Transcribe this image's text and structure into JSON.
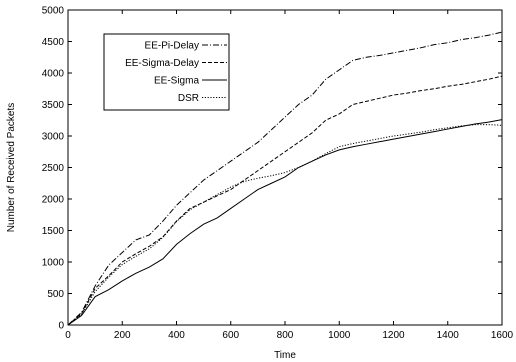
{
  "chart_data": {
    "type": "line",
    "title": "",
    "xlabel": "Time",
    "ylabel": "Number of Received Packets",
    "xlim": [
      0,
      1600
    ],
    "ylim": [
      0,
      5000
    ],
    "x_ticks": [
      "0",
      "200",
      "400",
      "600",
      "800",
      "1000",
      "1200",
      "1400",
      "1600"
    ],
    "y_ticks": [
      "0",
      "500",
      "1000",
      "1500",
      "2000",
      "2500",
      "3000",
      "3500",
      "4000",
      "4500",
      "5000"
    ],
    "grid": false,
    "legend_position": "top-left",
    "series": [
      {
        "name": "EE-Pi-Delay",
        "line_style": "dash-dot",
        "x": [
          0,
          50,
          100,
          150,
          200,
          250,
          300,
          350,
          400,
          450,
          500,
          550,
          600,
          650,
          700,
          750,
          800,
          850,
          900,
          950,
          1000,
          1050,
          1100,
          1150,
          1200,
          1250,
          1300,
          1350,
          1400,
          1450,
          1500,
          1550,
          1600
        ],
        "y": [
          0,
          200,
          620,
          950,
          1150,
          1350,
          1430,
          1650,
          1900,
          2100,
          2300,
          2450,
          2600,
          2750,
          2900,
          3100,
          3300,
          3500,
          3650,
          3900,
          4050,
          4200,
          4250,
          4280,
          4320,
          4360,
          4400,
          4450,
          4480,
          4530,
          4560,
          4600,
          4650
        ]
      },
      {
        "name": "EE-Sigma-Delay",
        "line_style": "dashed",
        "x": [
          0,
          50,
          100,
          150,
          200,
          250,
          300,
          350,
          400,
          450,
          500,
          550,
          600,
          650,
          700,
          750,
          800,
          850,
          900,
          950,
          1000,
          1050,
          1100,
          1150,
          1200,
          1250,
          1300,
          1350,
          1400,
          1450,
          1500,
          1550,
          1600
        ],
        "y": [
          0,
          180,
          580,
          780,
          1000,
          1130,
          1250,
          1400,
          1650,
          1850,
          1950,
          2050,
          2150,
          2300,
          2450,
          2600,
          2750,
          2900,
          3050,
          3250,
          3350,
          3500,
          3550,
          3600,
          3650,
          3680,
          3720,
          3750,
          3790,
          3820,
          3860,
          3900,
          3950
        ]
      },
      {
        "name": "EE-Sigma",
        "line_style": "solid",
        "x": [
          0,
          50,
          100,
          150,
          200,
          250,
          300,
          350,
          400,
          450,
          500,
          550,
          600,
          650,
          700,
          750,
          800,
          850,
          900,
          950,
          1000,
          1050,
          1100,
          1150,
          1200,
          1250,
          1300,
          1350,
          1400,
          1450,
          1500,
          1550,
          1600
        ],
        "y": [
          0,
          150,
          450,
          560,
          700,
          820,
          920,
          1050,
          1280,
          1450,
          1600,
          1700,
          1850,
          2000,
          2150,
          2250,
          2350,
          2500,
          2600,
          2700,
          2780,
          2830,
          2870,
          2910,
          2950,
          2990,
          3030,
          3070,
          3110,
          3150,
          3190,
          3220,
          3260
        ]
      },
      {
        "name": "DSR",
        "line_style": "dotted",
        "x": [
          0,
          50,
          100,
          150,
          200,
          250,
          300,
          350,
          400,
          450,
          500,
          550,
          600,
          650,
          700,
          750,
          800,
          850,
          900,
          950,
          1000,
          1050,
          1100,
          1150,
          1200,
          1250,
          1300,
          1350,
          1400,
          1450,
          1500,
          1550,
          1600
        ],
        "y": [
          0,
          170,
          530,
          760,
          960,
          1090,
          1210,
          1390,
          1640,
          1830,
          1950,
          2070,
          2190,
          2280,
          2330,
          2370,
          2420,
          2500,
          2600,
          2720,
          2830,
          2880,
          2920,
          2960,
          3000,
          3030,
          3060,
          3100,
          3130,
          3160,
          3180,
          3180,
          3170
        ]
      }
    ]
  }
}
